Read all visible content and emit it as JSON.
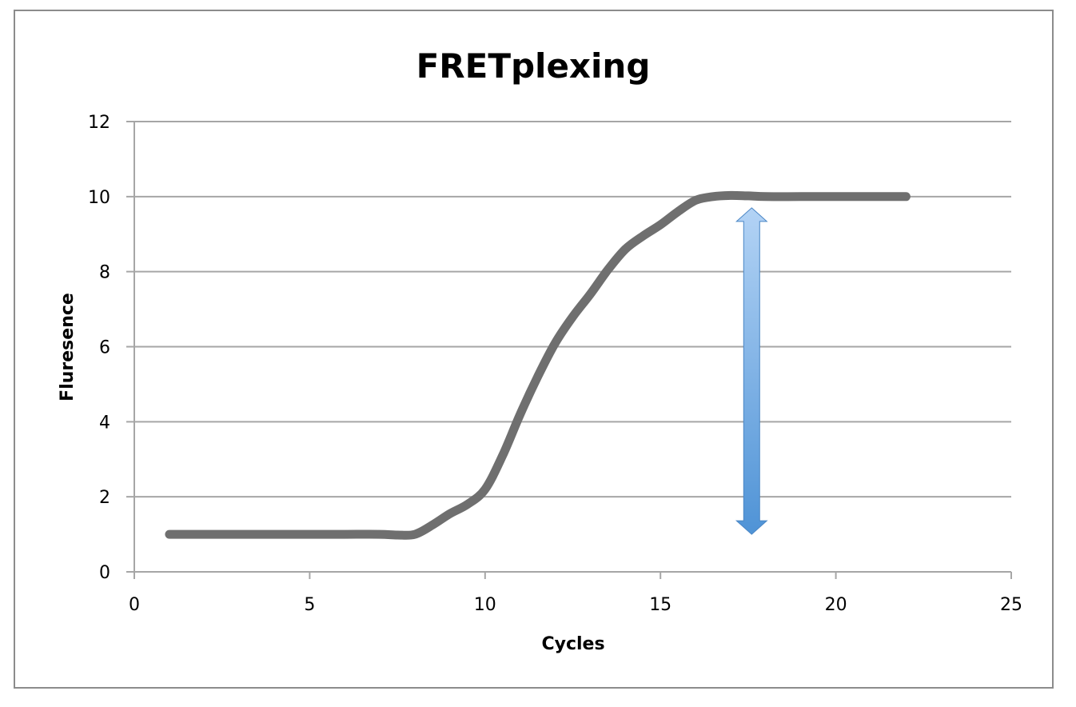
{
  "chart_data": {
    "type": "line",
    "title": "FRETplexing",
    "xlabel": "Cycles",
    "ylabel": "Fluresence",
    "xlim": [
      0,
      25
    ],
    "ylim": [
      0,
      12
    ],
    "xticks": [
      0,
      5,
      10,
      15,
      20,
      25
    ],
    "yticks": [
      0,
      2,
      4,
      6,
      8,
      10,
      12
    ],
    "grid": "horizontal",
    "legend": "none",
    "series": [
      {
        "color": "#6f6f6f",
        "x": [
          1,
          2,
          3,
          4,
          5,
          6,
          7,
          7.5,
          8,
          8.5,
          9,
          9.5,
          10,
          10.5,
          11,
          11.5,
          12,
          12.5,
          13,
          13.5,
          14,
          14.5,
          15,
          15.5,
          16,
          16.5,
          17,
          17.5,
          18,
          19,
          20,
          21,
          22
        ],
        "values": [
          1,
          1,
          1,
          1,
          1,
          1,
          1,
          0.98,
          1,
          1.25,
          1.55,
          1.8,
          2.2,
          3.1,
          4.2,
          5.2,
          6.1,
          6.8,
          7.4,
          8.05,
          8.6,
          8.95,
          9.25,
          9.6,
          9.9,
          10.0,
          10.03,
          10.02,
          10,
          10,
          10,
          10,
          10
        ]
      }
    ],
    "annotations": [
      {
        "type": "double-arrow",
        "x": 17.6,
        "y_start": 1.0,
        "y_end": 9.7,
        "color": "#5b9bd5"
      }
    ]
  }
}
